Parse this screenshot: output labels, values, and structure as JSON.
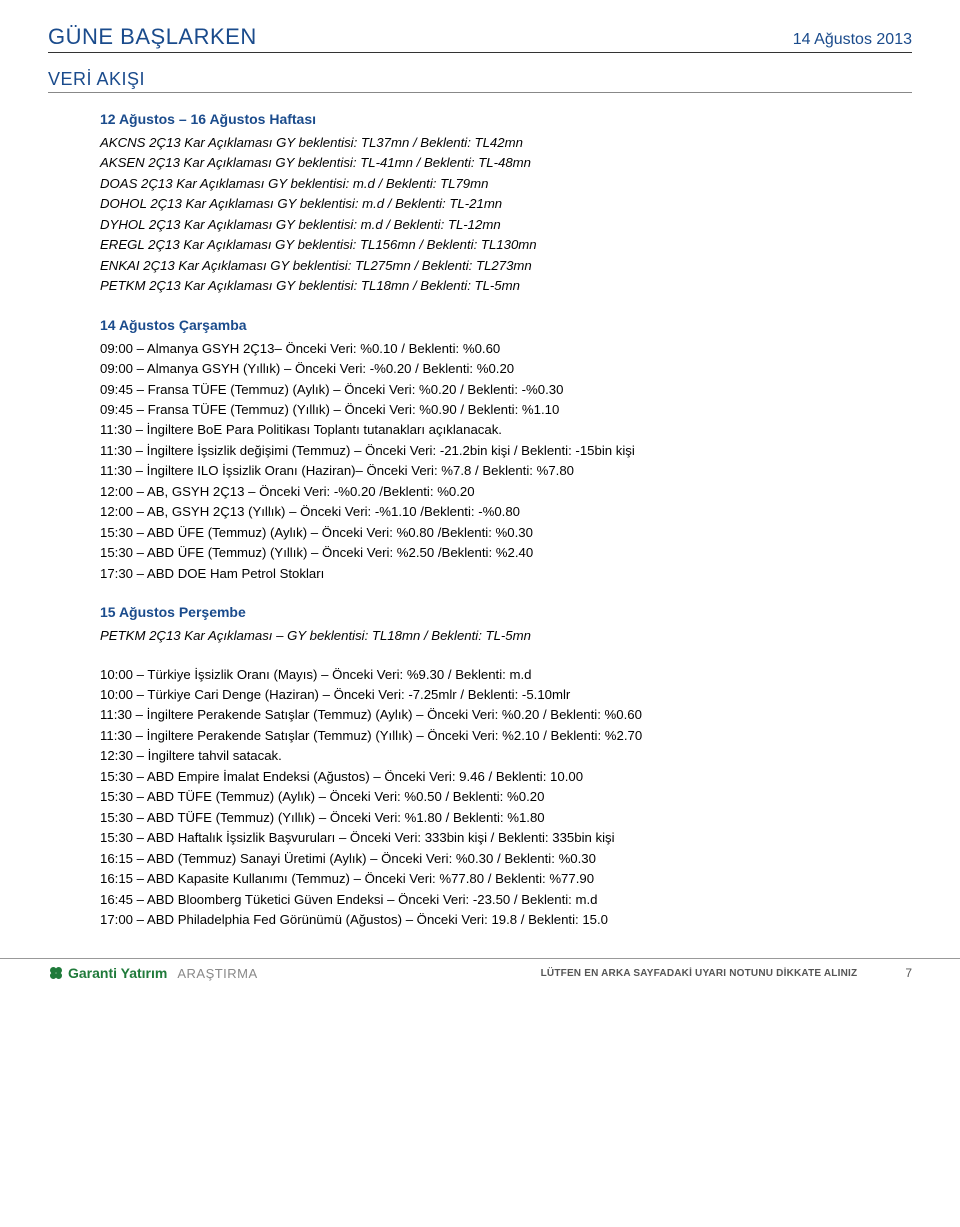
{
  "header": {
    "title": "GÜNE BAŞLARKEN",
    "date": "14 Ağustos 2013"
  },
  "section_title": "VERİ AKIŞI",
  "week_head": "12 Ağustos – 16 Ağustos Haftası",
  "earnings": [
    "AKCNS 2Ç13 Kar Açıklaması GY beklentisi: TL37mn  / Beklenti: TL42mn",
    "AKSEN 2Ç13 Kar Açıklaması GY beklentisi: TL-41mn  / Beklenti: TL-48mn",
    "DOAS 2Ç13 Kar Açıklaması GY beklentisi: m.d  / Beklenti: TL79mn",
    "DOHOL 2Ç13 Kar Açıklaması GY beklentisi: m.d  / Beklenti: TL-21mn",
    "DYHOL 2Ç13 Kar Açıklaması GY beklentisi: m.d  / Beklenti: TL-12mn",
    "EREGL 2Ç13 Kar Açıklaması GY beklentisi: TL156mn  / Beklenti: TL130mn",
    "ENKAI 2Ç13 Kar Açıklaması GY beklentisi: TL275mn  / Beklenti: TL273mn",
    "PETKM 2Ç13 Kar Açıklaması GY beklentisi: TL18mn  / Beklenti: TL-5mn"
  ],
  "wed_head": "14 Ağustos Çarşamba",
  "wed_items": [
    "09:00 – Almanya GSYH  2Ç13– Önceki Veri: %0.10 / Beklenti: %0.60",
    "09:00 – Almanya GSYH (Yıllık) – Önceki Veri: -%0.20 / Beklenti: %0.20",
    "09:45 – Fransa TÜFE (Temmuz) (Aylık) – Önceki Veri: %0.20 / Beklenti: -%0.30",
    "09:45 – Fransa TÜFE (Temmuz) (Yıllık) – Önceki Veri: %0.90 / Beklenti: %1.10",
    "11:30 – İngiltere BoE Para Politikası Toplantı tutanakları açıklanacak.",
    "11:30 – İngiltere İşsizlik değişimi (Temmuz) – Önceki Veri: -21.2bin kişi / Beklenti: -15bin kişi",
    "11:30 – İngiltere ILO İşsizlik Oranı (Haziran)– Önceki Veri: %7.8 / Beklenti: %7.80",
    "12:00 – AB, GSYH 2Ç13 – Önceki Veri: -%0.20 /Beklenti: %0.20",
    "12:00 – AB, GSYH 2Ç13 (Yıllık) – Önceki Veri: -%1.10 /Beklenti: -%0.80",
    "15:30 – ABD ÜFE (Temmuz) (Aylık) – Önceki Veri: %0.80 /Beklenti: %0.30",
    "15:30 – ABD ÜFE (Temmuz) (Yıllık) – Önceki Veri: %2.50 /Beklenti: %2.40",
    "17:30 – ABD DOE Ham Petrol Stokları"
  ],
  "thu_head": "15 Ağustos Perşembe",
  "thu_petkm": "PETKM 2Ç13 Kar Açıklaması – GY beklentisi: TL18mn  / Beklenti: TL-5mn",
  "thu_items": [
    "10:00 – Türkiye İşsizlik Oranı (Mayıs) – Önceki Veri: %9.30 / Beklenti: m.d",
    "10:00 – Türkiye Cari Denge (Haziran) – Önceki Veri: -7.25mlr / Beklenti: -5.10mlr",
    "11:30 – İngiltere Perakende Satışlar (Temmuz) (Aylık) – Önceki Veri: %0.20 / Beklenti: %0.60",
    "11:30 – İngiltere Perakende Satışlar (Temmuz) (Yıllık) – Önceki Veri: %2.10 / Beklenti: %2.70",
    "12:30 – İngiltere tahvil satacak.",
    "15:30 – ABD Empire İmalat Endeksi (Ağustos) – Önceki Veri: 9.46 / Beklenti: 10.00",
    "15:30 – ABD TÜFE (Temmuz) (Aylık) – Önceki Veri: %0.50 / Beklenti: %0.20",
    "15:30 – ABD TÜFE (Temmuz) (Yıllık) – Önceki Veri: %1.80 / Beklenti: %1.80",
    "15:30 – ABD Haftalık İşsizlik Başvuruları – Önceki Veri: 333bin kişi / Beklenti: 335bin kişi",
    "16:15 – ABD (Temmuz) Sanayi Üretimi (Aylık) – Önceki Veri: %0.30 / Beklenti: %0.30",
    "16:15 – ABD Kapasite Kullanımı (Temmuz) – Önceki Veri: %77.80 / Beklenti: %77.90",
    "16:45 – ABD Bloomberg Tüketici Güven Endeksi – Önceki Veri: -23.50 / Beklenti: m.d",
    "17:00 – ABD Philadelphia Fed Görünümü (Ağustos) – Önceki Veri: 19.8  / Beklenti: 15.0"
  ],
  "footer": {
    "logo_text": "Garanti Yatırım",
    "arastirma": "ARAŞTIRMA",
    "disclaimer": "LÜTFEN EN ARKA SAYFADAKİ UYARI NOTUNU DİKKATE ALINIZ",
    "page_number": "7"
  },
  "colors": {
    "brand_blue": "#1a4b8c",
    "logo_green": "#1f7a3a",
    "text": "#000000",
    "muted": "#888888",
    "rule": "#333333"
  }
}
